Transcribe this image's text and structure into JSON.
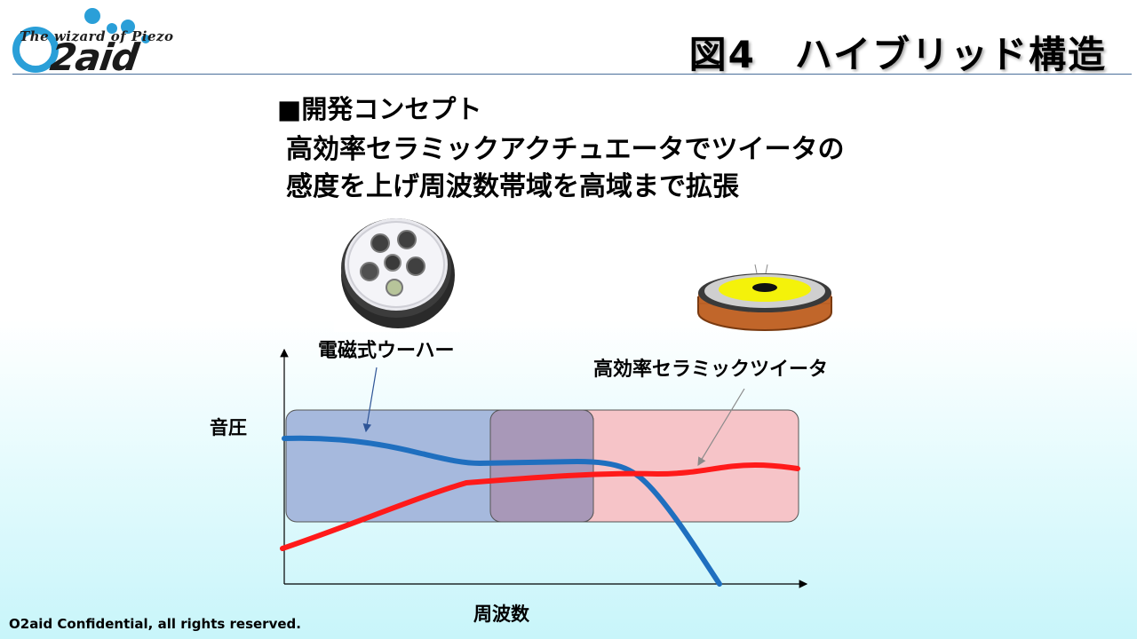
{
  "logo": {
    "tagline": "The wizard of Piezo",
    "wordmark": "O2aid",
    "accent_color": "#2a9fd8"
  },
  "title": "図4　ハイブリッド構造",
  "concept": {
    "heading": "■開発コンセプト",
    "lines": [
      "高効率セラミックアクチュエータでツイータの",
      "感度を上げ周波数帯域を高域まで拡張"
    ]
  },
  "components": {
    "woofer_label": "電磁式ウーハー",
    "tweeter_label": "高効率セラミックツイータ"
  },
  "diagram": {
    "y_axis_label": "音圧",
    "x_axis_label": "周波数",
    "woofer_band_color": "#a6b9dd",
    "tweeter_band_color": "#f6c4c8",
    "overlap_color": "#a898b8",
    "woofer_curve_color": "#1f6fbf",
    "tweeter_curve_color": "#ff1a1a"
  },
  "footer": "O2aid Confidential, all rights reserved."
}
